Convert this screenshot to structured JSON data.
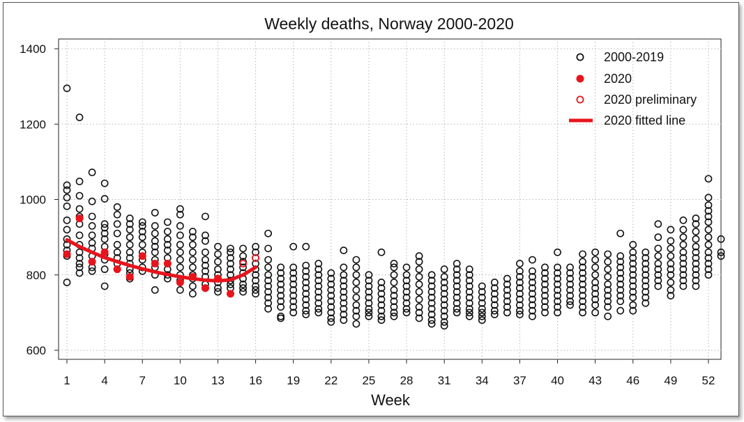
{
  "chart_data": {
    "type": "scatter",
    "title": "Weekly deaths, Norway 2000-2020",
    "xlabel": "Week",
    "ylabel": "",
    "xlim": [
      1,
      53
    ],
    "ylim": [
      600,
      1400
    ],
    "x_ticks": [
      1,
      4,
      7,
      10,
      13,
      16,
      19,
      22,
      25,
      28,
      31,
      34,
      37,
      40,
      43,
      46,
      49,
      52
    ],
    "y_ticks": [
      600,
      800,
      1000,
      1200,
      1400
    ],
    "grid": true,
    "legend_position": "top-right",
    "colors": {
      "history": "#111111",
      "y2020": "#e8141c"
    },
    "legend": [
      {
        "label": "2000-2019",
        "marker": "open-circle-black"
      },
      {
        "label": "2020",
        "marker": "filled-circle-red"
      },
      {
        "label": "2020 preliminary",
        "marker": "open-circle-red"
      },
      {
        "label": "2020 fitted line",
        "marker": "line-red"
      }
    ],
    "series": [
      {
        "name": "2000-2019",
        "points_by_week": {
          "1": [
            1295,
            1038,
            1025,
            1005,
            982,
            945,
            920,
            895,
            880,
            865,
            850,
            780
          ],
          "2": [
            1218,
            1048,
            1010,
            975,
            955,
            935,
            905,
            880,
            860,
            845,
            830,
            820,
            805
          ],
          "3": [
            1072,
            995,
            955,
            930,
            905,
            885,
            870,
            850,
            835,
            820,
            810
          ],
          "4": [
            1043,
            1002,
            935,
            925,
            910,
            895,
            875,
            855,
            840,
            815,
            770
          ],
          "5": [
            980,
            960,
            935,
            910,
            880,
            860,
            845,
            830,
            815
          ],
          "6": [
            950,
            935,
            920,
            900,
            880,
            860,
            845,
            830,
            815,
            805,
            790
          ],
          "7": [
            940,
            930,
            915,
            900,
            880,
            860,
            840,
            820,
            810
          ],
          "8": [
            965,
            930,
            910,
            890,
            875,
            860,
            840,
            820,
            800,
            760
          ],
          "9": [
            940,
            915,
            895,
            880,
            865,
            845,
            830,
            815,
            800,
            790
          ],
          "10": [
            975,
            960,
            930,
            905,
            880,
            860,
            840,
            820,
            800,
            785,
            760
          ],
          "11": [
            915,
            900,
            880,
            860,
            840,
            820,
            800,
            790,
            770,
            750
          ],
          "12": [
            955,
            905,
            890,
            860,
            840,
            825,
            810,
            795,
            775,
            765
          ],
          "13": [
            875,
            855,
            835,
            815,
            800,
            790,
            780,
            765,
            755
          ],
          "14": [
            870,
            860,
            845,
            830,
            815,
            800,
            785,
            775,
            765
          ],
          "15": [
            870,
            850,
            835,
            820,
            805,
            790,
            775,
            765,
            755
          ],
          "16": [
            875,
            860,
            845,
            830,
            815,
            800,
            785,
            770,
            760,
            750
          ],
          "17": [
            910,
            870,
            840,
            820,
            800,
            785,
            770,
            755,
            740,
            725,
            710
          ],
          "18": [
            820,
            805,
            790,
            775,
            760,
            745,
            730,
            715,
            690,
            685
          ],
          "19": [
            875,
            820,
            805,
            790,
            775,
            760,
            745,
            730,
            715,
            700
          ],
          "20": [
            875,
            825,
            810,
            795,
            780,
            765,
            750,
            735,
            720,
            705,
            695
          ],
          "21": [
            830,
            815,
            800,
            785,
            770,
            755,
            740,
            725,
            710,
            700
          ],
          "22": [
            805,
            790,
            775,
            760,
            745,
            730,
            715,
            700,
            685,
            675
          ],
          "23": [
            865,
            820,
            800,
            785,
            770,
            755,
            740,
            725,
            710,
            695,
            680
          ],
          "24": [
            840,
            820,
            800,
            780,
            760,
            740,
            720,
            705,
            690,
            670
          ],
          "25": [
            800,
            785,
            770,
            755,
            740,
            725,
            710,
            700,
            690
          ],
          "26": [
            860,
            780,
            765,
            750,
            735,
            720,
            705,
            690,
            680
          ],
          "27": [
            830,
            820,
            800,
            780,
            760,
            745,
            730,
            715,
            700,
            690
          ],
          "28": [
            820,
            800,
            785,
            770,
            755,
            740,
            725,
            710,
            700
          ],
          "29": [
            850,
            835,
            815,
            795,
            775,
            755,
            735,
            715,
            700,
            685
          ],
          "30": [
            800,
            785,
            770,
            755,
            740,
            725,
            710,
            695,
            680,
            670
          ],
          "31": [
            815,
            795,
            780,
            765,
            750,
            735,
            720,
            705,
            690,
            675,
            665
          ],
          "32": [
            830,
            815,
            800,
            785,
            770,
            755,
            740,
            725,
            710,
            700
          ],
          "33": [
            815,
            800,
            785,
            770,
            755,
            740,
            725,
            710,
            700,
            690
          ],
          "34": [
            770,
            755,
            740,
            725,
            710,
            700,
            690,
            680
          ],
          "35": [
            780,
            765,
            750,
            735,
            720,
            705,
            695
          ],
          "36": [
            790,
            775,
            760,
            745,
            730,
            715,
            700
          ],
          "37": [
            830,
            810,
            795,
            780,
            765,
            750,
            735,
            720,
            705,
            695
          ],
          "38": [
            840,
            810,
            795,
            780,
            765,
            750,
            735,
            720,
            705,
            690
          ],
          "39": [
            820,
            805,
            790,
            775,
            760,
            745,
            730,
            715,
            700
          ],
          "40": [
            860,
            820,
            805,
            790,
            775,
            760,
            745,
            730,
            715,
            700
          ],
          "41": [
            820,
            805,
            790,
            775,
            760,
            745,
            730,
            720
          ],
          "42": [
            855,
            835,
            820,
            805,
            790,
            775,
            760,
            745,
            730,
            715,
            700
          ],
          "43": [
            860,
            840,
            820,
            800,
            780,
            765,
            750,
            735,
            720,
            700
          ],
          "44": [
            855,
            835,
            815,
            795,
            775,
            760,
            745,
            730,
            715,
            690
          ],
          "45": [
            910,
            850,
            835,
            820,
            805,
            790,
            775,
            760,
            745,
            730,
            705
          ],
          "46": [
            880,
            860,
            845,
            830,
            815,
            800,
            785,
            770,
            755,
            740,
            720,
            705
          ],
          "47": [
            860,
            845,
            830,
            815,
            800,
            785,
            770,
            755,
            740,
            725
          ],
          "48": [
            935,
            900,
            870,
            850,
            830,
            815,
            800,
            785,
            770
          ],
          "49": [
            920,
            890,
            870,
            850,
            830,
            815,
            800,
            780,
            760,
            745
          ],
          "50": [
            945,
            920,
            900,
            880,
            860,
            845,
            830,
            815,
            800,
            785,
            770
          ],
          "51": [
            950,
            935,
            915,
            895,
            875,
            860,
            845,
            830,
            815,
            800,
            785,
            770
          ],
          "52": [
            1055,
            1005,
            985,
            970,
            955,
            940,
            920,
            900,
            880,
            860,
            845,
            830,
            815,
            800
          ],
          "53": [
            895,
            860,
            850
          ]
        }
      },
      {
        "name": "2020",
        "x": [
          1,
          2,
          3,
          4,
          5,
          6,
          7,
          8,
          9,
          10,
          11,
          12,
          13,
          14
        ],
        "y": [
          855,
          950,
          835,
          860,
          815,
          795,
          850,
          830,
          830,
          780,
          795,
          765,
          790,
          750
        ]
      },
      {
        "name": "2020 preliminary",
        "x": [
          15,
          16
        ],
        "y": [
          830,
          845
        ]
      },
      {
        "name": "2020 fitted line",
        "x": [
          1,
          2,
          3,
          4,
          5,
          6,
          7,
          8,
          9,
          10,
          11,
          12,
          13,
          14,
          15,
          16
        ],
        "y": [
          893,
          875,
          860,
          846,
          835,
          825,
          816,
          808,
          801,
          795,
          790,
          786,
          784,
          787,
          800,
          820
        ]
      }
    ]
  }
}
